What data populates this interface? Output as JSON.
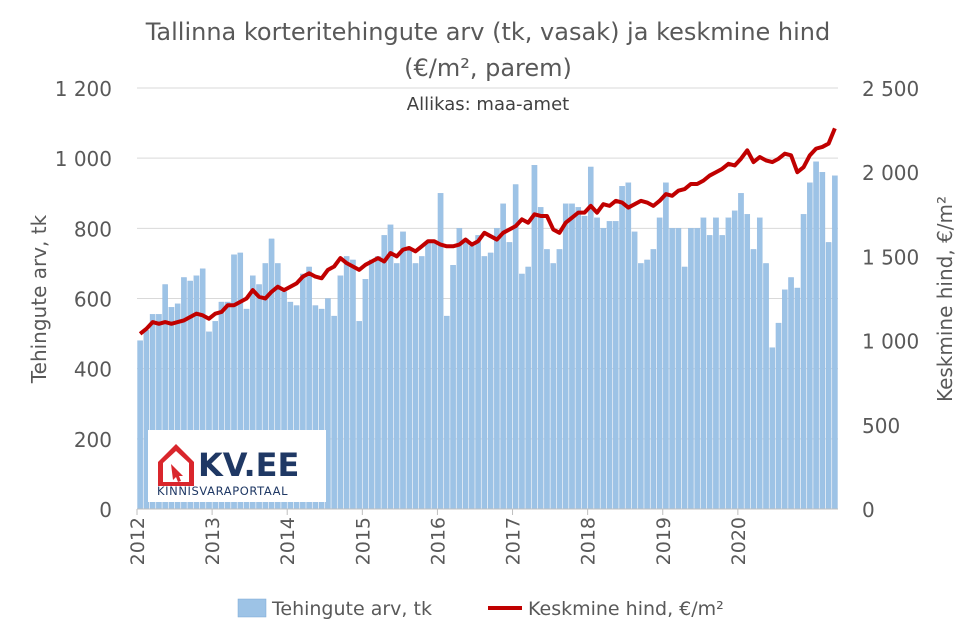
{
  "chart_data": {
    "type": "bar",
    "title_line1": "Tallinna korteritehingute arv (tk, vasak) ja keskmine hind",
    "title_line2": "(€/m², parem)",
    "subtitle": "Allikas: maa-amet",
    "ylabel_left": "Tehingute arv, tk",
    "ylabel_right": "Keskmine hind, €/m²",
    "ylim_left": [
      0,
      1200
    ],
    "ylim_right": [
      0,
      2500
    ],
    "yticks_left": [
      0,
      200,
      400,
      600,
      800,
      1000,
      1200
    ],
    "yticks_left_labels": [
      "0",
      "200",
      "400",
      "600",
      "800",
      "1 000",
      "1 200"
    ],
    "yticks_right": [
      0,
      500,
      1000,
      1500,
      2000,
      2500
    ],
    "yticks_right_labels": [
      "0",
      "500",
      "1 000",
      "1 500",
      "2 000",
      "2 500"
    ],
    "x_start": "2012-01",
    "x_end": "2020-12",
    "xtick_labels": [
      "2012",
      "2013",
      "2014",
      "2015",
      "2016",
      "2017",
      "2018",
      "2019",
      "2020"
    ],
    "grid": "horizontal",
    "legend_position": "bottom",
    "series": [
      {
        "name": "Tehingute arv, tk",
        "type": "bar",
        "axis": "left",
        "color": "#9dc3e6",
        "values": [
          480,
          510,
          555,
          555,
          640,
          575,
          585,
          660,
          650,
          665,
          685,
          505,
          535,
          590,
          590,
          725,
          730,
          570,
          665,
          640,
          700,
          770,
          700,
          620,
          590,
          580,
          670,
          690,
          580,
          570,
          600,
          550,
          665,
          720,
          710,
          535,
          655,
          710,
          720,
          780,
          810,
          700,
          790,
          740,
          700,
          720,
          760,
          760,
          900,
          550,
          695,
          800,
          770,
          750,
          780,
          720,
          730,
          800,
          870,
          760,
          925,
          670,
          690,
          980,
          860,
          740,
          700,
          740,
          870,
          870,
          860,
          835,
          975,
          830,
          800,
          820,
          820,
          920,
          930,
          790,
          700,
          710,
          740,
          830,
          930,
          800,
          800,
          690,
          800,
          800,
          830,
          780,
          830,
          780,
          830,
          850,
          900,
          840,
          740,
          830,
          700,
          460,
          530,
          625,
          660,
          630,
          840,
          930,
          990,
          960,
          760,
          950
        ],
        "values_note": ""
      },
      {
        "name": "Keskmine hind, €/m²",
        "type": "line",
        "axis": "right",
        "color": "#c00000",
        "values": [
          1040,
          1070,
          1110,
          1100,
          1110,
          1100,
          1110,
          1120,
          1140,
          1160,
          1150,
          1130,
          1160,
          1170,
          1210,
          1210,
          1230,
          1250,
          1300,
          1260,
          1250,
          1290,
          1320,
          1300,
          1320,
          1340,
          1380,
          1400,
          1380,
          1370,
          1420,
          1440,
          1490,
          1460,
          1440,
          1420,
          1450,
          1470,
          1490,
          1470,
          1520,
          1500,
          1540,
          1550,
          1530,
          1560,
          1590,
          1590,
          1570,
          1560,
          1560,
          1570,
          1600,
          1570,
          1590,
          1640,
          1620,
          1600,
          1640,
          1660,
          1680,
          1720,
          1700,
          1750,
          1740,
          1740,
          1660,
          1640,
          1700,
          1730,
          1760,
          1760,
          1800,
          1760,
          1810,
          1800,
          1830,
          1820,
          1790,
          1810,
          1830,
          1820,
          1800,
          1830,
          1870,
          1860,
          1890,
          1900,
          1930,
          1930,
          1950,
          1980,
          2000,
          2020,
          2050,
          2040,
          2080,
          2130,
          2060,
          2090,
          2070,
          2060,
          2080,
          2110,
          2100,
          2000,
          2030,
          2100,
          2140,
          2150,
          2170,
          2260
        ]
      }
    ]
  },
  "logo": {
    "name": "KV.EE",
    "tagline": "KINNISVARAPORTAAL",
    "accent": "#d9262c",
    "text_color": "#1f3864"
  }
}
